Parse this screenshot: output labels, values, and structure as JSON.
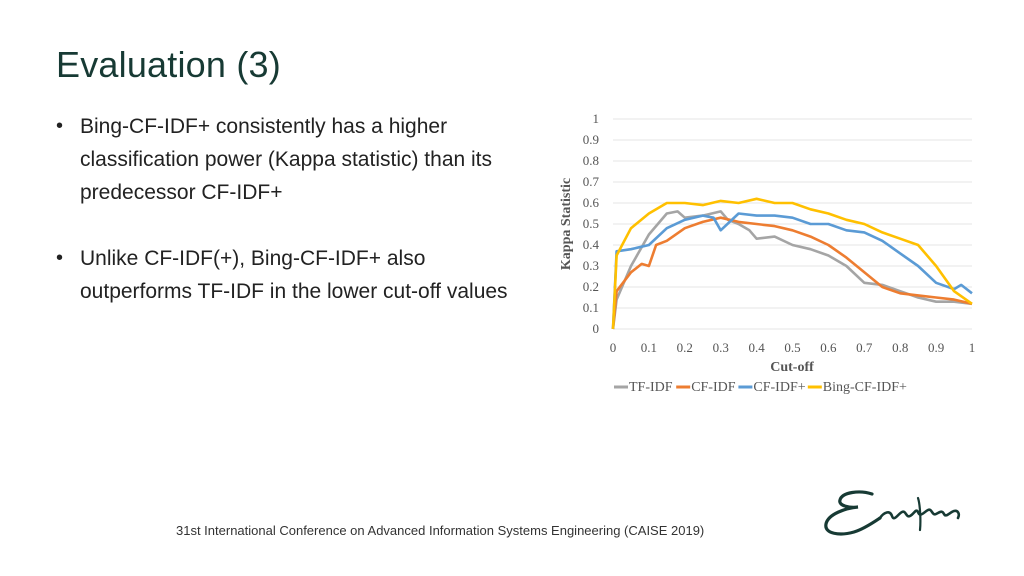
{
  "slide": {
    "title": "Evaluation (3)",
    "bullets": [
      "Bing-CF-IDF+ consistently has a higher classification power (Kappa statistic) than its predecessor CF-IDF+",
      "Unlike CF-IDF(+), Bing-CF-IDF+ also outperforms TF-IDF in the lower cut-off values"
    ],
    "footer": "31st International Conference on Advanced Information Systems Engineering (CAISE 2019)",
    "logo_text": "Erasmus"
  },
  "colors": {
    "title": "#173a34",
    "tf_idf": "#a5a5a5",
    "cf_idf": "#ed7d31",
    "cf_idf_plus": "#5b9bd5",
    "bing_cf_idf_plus": "#ffc000"
  },
  "chart_data": {
    "type": "line",
    "xlabel": "Cut-off",
    "ylabel": "Kappa Statistic",
    "xlim": [
      0,
      1
    ],
    "ylim": [
      0,
      1
    ],
    "xticks": [
      "0",
      "0.1",
      "0.2",
      "0.3",
      "0.4",
      "0.5",
      "0.6",
      "0.7",
      "0.8",
      "0.9",
      "1"
    ],
    "yticks": [
      "0",
      "0.1",
      "0.2",
      "0.3",
      "0.4",
      "0.5",
      "0.6",
      "0.7",
      "0.8",
      "0.9",
      "1"
    ],
    "grid": "horizontal",
    "legend": "bottom",
    "series": [
      {
        "name": "TF-IDF",
        "color": "#a5a5a5",
        "x": [
          0,
          0.01,
          0.05,
          0.1,
          0.15,
          0.18,
          0.2,
          0.25,
          0.3,
          0.32,
          0.35,
          0.38,
          0.4,
          0.45,
          0.5,
          0.55,
          0.6,
          0.65,
          0.7,
          0.75,
          0.8,
          0.85,
          0.9,
          0.95,
          1.0
        ],
        "y": [
          0.0,
          0.14,
          0.3,
          0.45,
          0.55,
          0.56,
          0.53,
          0.54,
          0.56,
          0.52,
          0.5,
          0.47,
          0.43,
          0.44,
          0.4,
          0.38,
          0.35,
          0.3,
          0.22,
          0.21,
          0.18,
          0.15,
          0.13,
          0.13,
          0.12
        ]
      },
      {
        "name": "CF-IDF",
        "color": "#ed7d31",
        "x": [
          0,
          0.01,
          0.05,
          0.08,
          0.1,
          0.12,
          0.15,
          0.2,
          0.25,
          0.3,
          0.35,
          0.4,
          0.45,
          0.5,
          0.55,
          0.6,
          0.65,
          0.7,
          0.75,
          0.8,
          0.85,
          0.9,
          0.95,
          1.0
        ],
        "y": [
          0.0,
          0.18,
          0.27,
          0.31,
          0.3,
          0.4,
          0.42,
          0.48,
          0.51,
          0.53,
          0.51,
          0.5,
          0.49,
          0.47,
          0.44,
          0.4,
          0.34,
          0.27,
          0.2,
          0.17,
          0.16,
          0.15,
          0.14,
          0.12
        ]
      },
      {
        "name": "CF-IDF+",
        "color": "#5b9bd5",
        "x": [
          0,
          0.01,
          0.05,
          0.1,
          0.15,
          0.2,
          0.25,
          0.28,
          0.3,
          0.35,
          0.4,
          0.45,
          0.5,
          0.55,
          0.6,
          0.65,
          0.7,
          0.75,
          0.8,
          0.85,
          0.9,
          0.95,
          0.97,
          1.0
        ],
        "y": [
          0.0,
          0.37,
          0.38,
          0.4,
          0.48,
          0.52,
          0.54,
          0.53,
          0.47,
          0.55,
          0.54,
          0.54,
          0.53,
          0.5,
          0.5,
          0.47,
          0.46,
          0.42,
          0.36,
          0.3,
          0.22,
          0.19,
          0.21,
          0.17
        ]
      },
      {
        "name": "Bing-CF-IDF+",
        "color": "#ffc000",
        "x": [
          0,
          0.01,
          0.05,
          0.1,
          0.15,
          0.2,
          0.25,
          0.3,
          0.35,
          0.4,
          0.45,
          0.5,
          0.55,
          0.6,
          0.65,
          0.7,
          0.75,
          0.8,
          0.85,
          0.9,
          0.95,
          1.0
        ],
        "y": [
          0.0,
          0.35,
          0.48,
          0.55,
          0.6,
          0.6,
          0.59,
          0.61,
          0.6,
          0.62,
          0.6,
          0.6,
          0.57,
          0.55,
          0.52,
          0.5,
          0.46,
          0.43,
          0.4,
          0.3,
          0.18,
          0.12
        ]
      }
    ]
  }
}
